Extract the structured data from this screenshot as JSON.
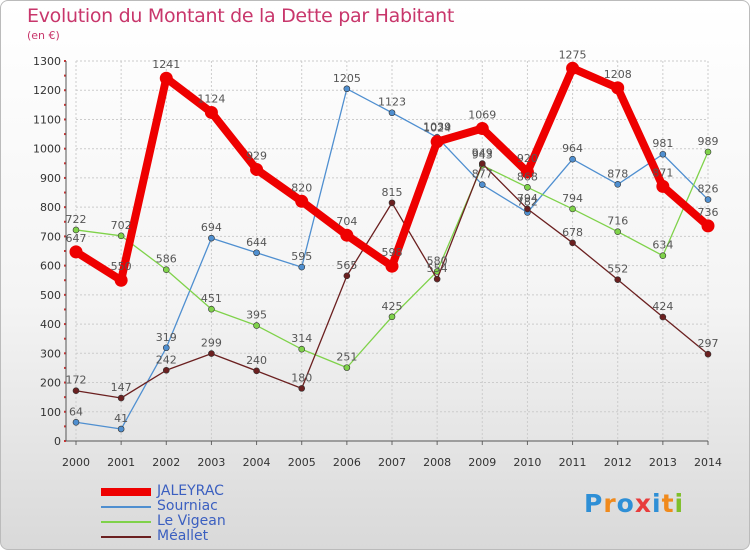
{
  "chart_data": {
    "type": "line",
    "title": "Evolution du Montant de la Dette par Habitant",
    "subtitle": "(en €)",
    "categories": [
      "2000",
      "2001",
      "2002",
      "2003",
      "2004",
      "2005",
      "2006",
      "2007",
      "2008",
      "2009",
      "2010",
      "2011",
      "2012",
      "2013",
      "2014"
    ],
    "ylim": [
      0,
      1300
    ],
    "yticks": [
      0,
      100,
      200,
      300,
      400,
      500,
      600,
      700,
      800,
      900,
      1000,
      1100,
      1200,
      1300
    ],
    "grid": true,
    "legend_position": "bottom-left",
    "series": [
      {
        "name": "JALEYRAC",
        "color": "#ee0000",
        "values": [
          647,
          550,
          1241,
          1124,
          929,
          820,
          704,
          598,
          1024,
          1069,
          920,
          1275,
          1208,
          871,
          736
        ]
      },
      {
        "name": "Sourniac",
        "color": "#4f8fd0",
        "values": [
          64,
          41,
          319,
          694,
          644,
          595,
          1205,
          1123,
          1039,
          877,
          782,
          964,
          878,
          981,
          826
        ]
      },
      {
        "name": "Le Vigean",
        "color": "#7fd24a",
        "values": [
          722,
          702,
          586,
          451,
          395,
          314,
          251,
          425,
          580,
          943,
          868,
          794,
          716,
          634,
          989
        ]
      },
      {
        "name": "Méallet",
        "color": "#6b2020",
        "values": [
          172,
          147,
          242,
          299,
          240,
          180,
          565,
          815,
          554,
          949,
          794,
          678,
          552,
          424,
          297
        ]
      }
    ]
  },
  "logo": {
    "text": "Proxiti",
    "letters": [
      "P",
      "r",
      "o",
      "x",
      "i",
      "t",
      "i"
    ],
    "colors": [
      "#2e8fd6",
      "#f08a1c",
      "#2e8fd6",
      "#e83c3c",
      "#2e8fd6",
      "#f08a1c",
      "#7fbf2a"
    ]
  }
}
